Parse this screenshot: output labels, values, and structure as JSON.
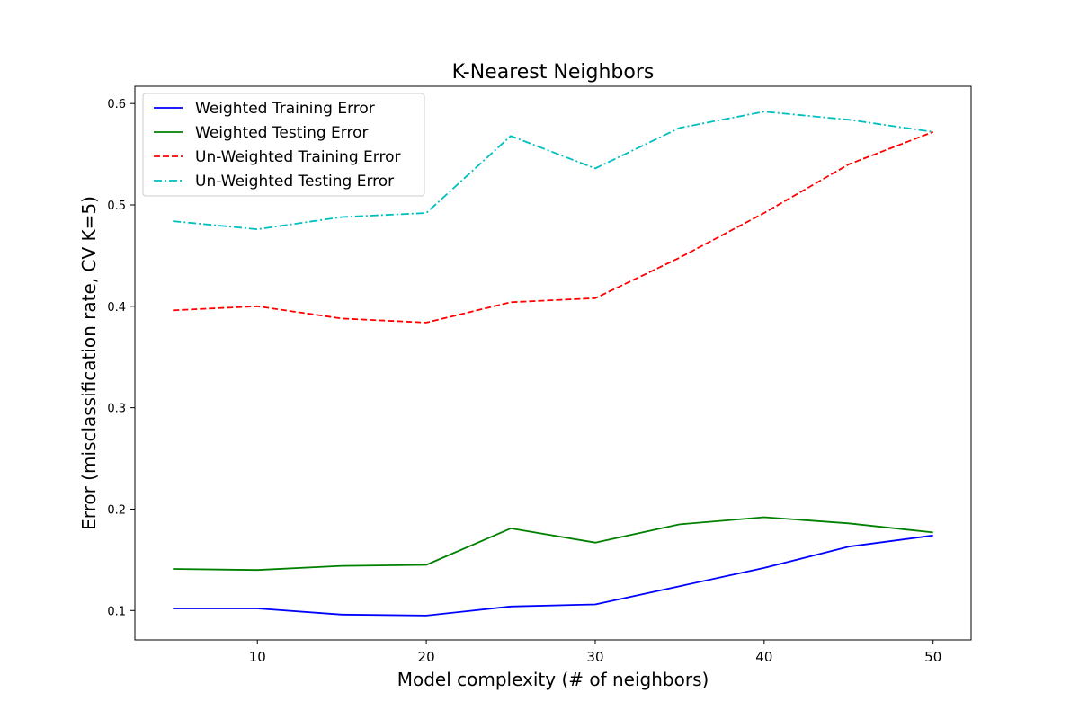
{
  "chart_data": {
    "type": "line",
    "title": "K-Nearest Neighbors",
    "xlabel": "Model complexity (# of neighbors)",
    "ylabel": "Error (misclassification rate, CV K=5)",
    "x": [
      5,
      10,
      15,
      20,
      25,
      30,
      35,
      40,
      45,
      50
    ],
    "xlim": [
      2.75,
      52.25
    ],
    "ylim": [
      0.071,
      0.617
    ],
    "xticks": [
      10,
      20,
      30,
      40,
      50
    ],
    "yticks": [
      0.1,
      0.2,
      0.3,
      0.4,
      0.5,
      0.6
    ],
    "xtick_labels": [
      "10",
      "20",
      "30",
      "40",
      "50"
    ],
    "ytick_labels": [
      "0.1",
      "0.2",
      "0.3",
      "0.4",
      "0.5",
      "0.6"
    ],
    "grid": false,
    "legend_position": "top-left",
    "series": [
      {
        "name": "Weighted Training Error",
        "color": "#0000ff",
        "style": "solid",
        "values": [
          0.102,
          0.102,
          0.096,
          0.095,
          0.104,
          0.106,
          0.124,
          0.142,
          0.163,
          0.174
        ]
      },
      {
        "name": "Weighted Testing Error",
        "color": "#008000",
        "style": "solid",
        "values": [
          0.141,
          0.14,
          0.144,
          0.145,
          0.181,
          0.167,
          0.185,
          0.192,
          0.186,
          0.177
        ]
      },
      {
        "name": "Un-Weighted Training Error",
        "color": "#ff0000",
        "style": "dashed",
        "values": [
          0.396,
          0.4,
          0.388,
          0.384,
          0.404,
          0.408,
          0.448,
          0.492,
          0.54,
          0.572
        ]
      },
      {
        "name": "Un-Weighted Testing Error",
        "color": "#00bfbf",
        "style": "dashdot",
        "values": [
          0.484,
          0.476,
          0.488,
          0.492,
          0.568,
          0.536,
          0.576,
          0.592,
          0.584,
          0.572
        ]
      }
    ]
  }
}
